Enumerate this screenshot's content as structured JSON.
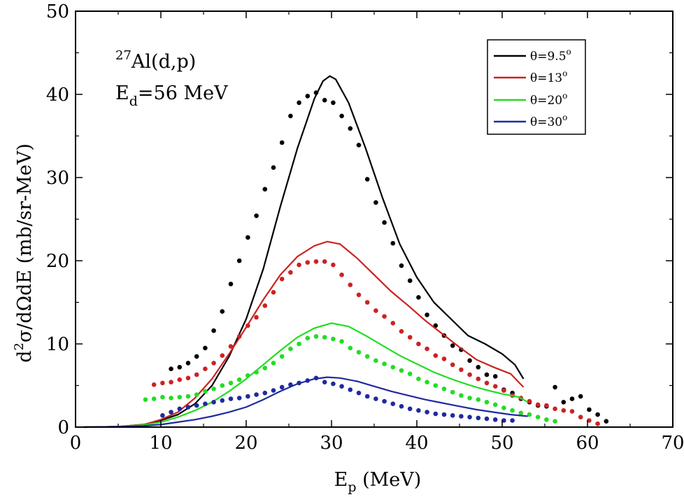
{
  "chart_data": {
    "type": "line",
    "title": "",
    "xlabel": {
      "main": "E",
      "sub": "p",
      "rest": " (MeV)"
    },
    "ylabel": {
      "d": "d",
      "sup": "2",
      "rest": "σ/dΩdE (mb/sr-MeV)"
    },
    "xlim": [
      0,
      70
    ],
    "ylim": [
      0,
      50
    ],
    "xticks": [
      0,
      10,
      20,
      30,
      40,
      50,
      60,
      70
    ],
    "yticks": [
      0,
      10,
      20,
      30,
      40,
      50
    ],
    "grid": false,
    "legend_position": "top-right",
    "annotation": {
      "reaction_sup": "27",
      "reaction": "Al(d,p)",
      "energy_main": "E",
      "energy_sub": "d",
      "energy_rest": "=56 MeV"
    },
    "series": [
      {
        "name": "θ=9.5°",
        "label_main": "θ=9.5",
        "label_sup": "o",
        "color": "#000000",
        "curve": [
          [
            1,
            0
          ],
          [
            5,
            0.05
          ],
          [
            8,
            0.3
          ],
          [
            10,
            0.8
          ],
          [
            12,
            1.5
          ],
          [
            14,
            2.8
          ],
          [
            16,
            5
          ],
          [
            18,
            8.5
          ],
          [
            20,
            13
          ],
          [
            22,
            19
          ],
          [
            24,
            26.5
          ],
          [
            26,
            33.5
          ],
          [
            28,
            39.5
          ],
          [
            29,
            41.6
          ],
          [
            29.8,
            42.2
          ],
          [
            30.5,
            41.8
          ],
          [
            32,
            39
          ],
          [
            34,
            33.5
          ],
          [
            36,
            27.5
          ],
          [
            38,
            22
          ],
          [
            40,
            18
          ],
          [
            42,
            15
          ],
          [
            44,
            13
          ],
          [
            46,
            11
          ],
          [
            48,
            10
          ],
          [
            50,
            8.8
          ],
          [
            51.5,
            7.5
          ],
          [
            52.5,
            5.8
          ]
        ],
        "points": [
          [
            11.2,
            7
          ],
          [
            12.2,
            7.2
          ],
          [
            13.2,
            7.7
          ],
          [
            14.2,
            8.5
          ],
          [
            15.2,
            9.5
          ],
          [
            16.2,
            11.6
          ],
          [
            17.2,
            13.9
          ],
          [
            18.2,
            17.2
          ],
          [
            19.2,
            20
          ],
          [
            20.2,
            22.8
          ],
          [
            21.2,
            25.4
          ],
          [
            22.2,
            28.6
          ],
          [
            23.2,
            31.2
          ],
          [
            24.2,
            34.2
          ],
          [
            25.2,
            37.4
          ],
          [
            26.2,
            39
          ],
          [
            27.2,
            39.8
          ],
          [
            28.2,
            40.2
          ],
          [
            29.2,
            39.3
          ],
          [
            30.2,
            39
          ],
          [
            31.2,
            37.4
          ],
          [
            32.2,
            35.9
          ],
          [
            33.2,
            33.9
          ],
          [
            34.2,
            29.8
          ],
          [
            35.2,
            27
          ],
          [
            36.2,
            24.6
          ],
          [
            37.2,
            22.1
          ],
          [
            38.2,
            19.4
          ],
          [
            39.2,
            17.6
          ],
          [
            40.2,
            15.6
          ],
          [
            41.2,
            13.5
          ],
          [
            42.2,
            12.2
          ],
          [
            43.2,
            11
          ],
          [
            44.2,
            9.8
          ],
          [
            45.2,
            9.3
          ],
          [
            46.2,
            8
          ],
          [
            47.2,
            7.2
          ],
          [
            48.2,
            6.3
          ],
          [
            49.2,
            6.1
          ],
          [
            50.2,
            4.5
          ],
          [
            51.2,
            4.1
          ],
          [
            52.2,
            3.4
          ],
          [
            53.2,
            3
          ],
          [
            54.2,
            2.6
          ],
          [
            55.2,
            2.5
          ],
          [
            56.2,
            4.8
          ],
          [
            57.2,
            3
          ],
          [
            58.2,
            3.4
          ],
          [
            59.2,
            3.7
          ],
          [
            60.2,
            2.1
          ],
          [
            61.2,
            1.5
          ],
          [
            62.2,
            0.7
          ]
        ]
      },
      {
        "name": "θ=13°",
        "label_main": "θ=13",
        "label_sup": "o",
        "color": "#cc2222",
        "curve": [
          [
            1,
            0
          ],
          [
            5,
            0.05
          ],
          [
            8,
            0.3
          ],
          [
            10,
            0.9
          ],
          [
            12,
            1.8
          ],
          [
            14,
            3.5
          ],
          [
            16,
            5.8
          ],
          [
            18,
            8.8
          ],
          [
            20,
            12
          ],
          [
            22,
            15.3
          ],
          [
            24,
            18.3
          ],
          [
            26,
            20.5
          ],
          [
            28,
            21.8
          ],
          [
            29.5,
            22.3
          ],
          [
            31,
            22
          ],
          [
            33,
            20.3
          ],
          [
            35,
            18.3
          ],
          [
            37,
            16.3
          ],
          [
            39,
            14.6
          ],
          [
            41,
            12.8
          ],
          [
            43,
            11.2
          ],
          [
            45,
            9.6
          ],
          [
            47,
            8.1
          ],
          [
            49,
            7.2
          ],
          [
            51,
            6.4
          ],
          [
            52.5,
            4.8
          ]
        ],
        "points": [
          [
            9.2,
            5.1
          ],
          [
            10.2,
            5.3
          ],
          [
            11.2,
            5.4
          ],
          [
            12.2,
            5.7
          ],
          [
            13.2,
            5.9
          ],
          [
            14.2,
            6.3
          ],
          [
            15.2,
            7
          ],
          [
            16.2,
            7.7
          ],
          [
            17.2,
            8.6
          ],
          [
            18.2,
            9.7
          ],
          [
            19.2,
            10.9
          ],
          [
            20.2,
            12.2
          ],
          [
            21.2,
            13.2
          ],
          [
            22.2,
            14.6
          ],
          [
            23.2,
            16.2
          ],
          [
            24.2,
            17.8
          ],
          [
            25.2,
            18.6
          ],
          [
            26.2,
            19.5
          ],
          [
            27.2,
            19.8
          ],
          [
            28.2,
            19.9
          ],
          [
            29.2,
            19.9
          ],
          [
            30.2,
            19.5
          ],
          [
            31.2,
            18.3
          ],
          [
            32.2,
            17.1
          ],
          [
            33.2,
            15.9
          ],
          [
            34.2,
            15
          ],
          [
            35.2,
            14
          ],
          [
            36.2,
            13.3
          ],
          [
            37.2,
            12.5
          ],
          [
            38.2,
            11.5
          ],
          [
            39.2,
            10.8
          ],
          [
            40.2,
            10
          ],
          [
            41.2,
            9.4
          ],
          [
            42.2,
            8.6
          ],
          [
            43.2,
            8.2
          ],
          [
            44.2,
            7.5
          ],
          [
            45.2,
            6.9
          ],
          [
            46.2,
            6.3
          ],
          [
            47.2,
            5.8
          ],
          [
            48.2,
            5.3
          ],
          [
            49.2,
            4.9
          ],
          [
            50.2,
            4.4
          ],
          [
            51.2,
            3.8
          ],
          [
            52.2,
            3.5
          ],
          [
            53.2,
            3.1
          ],
          [
            54.2,
            2.7
          ],
          [
            55.2,
            2.6
          ],
          [
            56.2,
            2.2
          ],
          [
            57.2,
            2
          ],
          [
            58.2,
            1.9
          ],
          [
            59.2,
            1.2
          ],
          [
            60.2,
            0.8
          ],
          [
            61.2,
            0.4
          ]
        ]
      },
      {
        "name": "θ=20°",
        "label_main": "θ=20",
        "label_sup": "o",
        "color": "#22dd22",
        "curve": [
          [
            1,
            0
          ],
          [
            5,
            0.05
          ],
          [
            8,
            0.25
          ],
          [
            10,
            0.6
          ],
          [
            12,
            1.2
          ],
          [
            14,
            2
          ],
          [
            16,
            3
          ],
          [
            18,
            4.3
          ],
          [
            20,
            5.8
          ],
          [
            22,
            7.5
          ],
          [
            24,
            9.2
          ],
          [
            26,
            10.8
          ],
          [
            28,
            11.9
          ],
          [
            30,
            12.5
          ],
          [
            32,
            12.1
          ],
          [
            34,
            11
          ],
          [
            36,
            9.8
          ],
          [
            38,
            8.6
          ],
          [
            40,
            7.6
          ],
          [
            42,
            6.6
          ],
          [
            44,
            5.8
          ],
          [
            46,
            5.1
          ],
          [
            48,
            4.5
          ],
          [
            50,
            4
          ],
          [
            52,
            3.6
          ],
          [
            53,
            3
          ]
        ],
        "points": [
          [
            8.2,
            3.3
          ],
          [
            9.2,
            3.4
          ],
          [
            10.2,
            3.6
          ],
          [
            11.2,
            3.5
          ],
          [
            12.2,
            3.6
          ],
          [
            13.2,
            3.7
          ],
          [
            14.2,
            3.9
          ],
          [
            15.2,
            4.3
          ],
          [
            16.2,
            4.6
          ],
          [
            17.2,
            5
          ],
          [
            18.2,
            5.3
          ],
          [
            19.2,
            5.7
          ],
          [
            20.2,
            6.2
          ],
          [
            21.2,
            6.6
          ],
          [
            22.2,
            7.1
          ],
          [
            23.2,
            7.7
          ],
          [
            24.2,
            8.5
          ],
          [
            25.2,
            9.4
          ],
          [
            26.2,
            10
          ],
          [
            27.2,
            10.7
          ],
          [
            28.2,
            10.9
          ],
          [
            29.2,
            10.8
          ],
          [
            30.2,
            10.6
          ],
          [
            31.2,
            10.3
          ],
          [
            32.2,
            9.5
          ],
          [
            33.2,
            9
          ],
          [
            34.2,
            8.5
          ],
          [
            35.2,
            8
          ],
          [
            36.2,
            7.6
          ],
          [
            37.2,
            7.2
          ],
          [
            38.2,
            6.8
          ],
          [
            39.2,
            6.4
          ],
          [
            40.2,
            5.8
          ],
          [
            41.2,
            5.4
          ],
          [
            42.2,
            5
          ],
          [
            43.2,
            4.6
          ],
          [
            44.2,
            4.2
          ],
          [
            45.2,
            3.8
          ],
          [
            46.2,
            3.5
          ],
          [
            47.2,
            3.3
          ],
          [
            48.2,
            3
          ],
          [
            49.2,
            2.7
          ],
          [
            50.2,
            2.3
          ],
          [
            51.2,
            2
          ],
          [
            52.2,
            1.7
          ],
          [
            53.2,
            1.5
          ],
          [
            54.2,
            1.2
          ],
          [
            55.2,
            0.9
          ],
          [
            56.2,
            0.7
          ]
        ]
      },
      {
        "name": "θ=30°",
        "label_main": "θ=30",
        "label_sup": "o",
        "color": "#1f2aa0",
        "curve": [
          [
            1,
            0
          ],
          [
            5,
            0.05
          ],
          [
            8,
            0.15
          ],
          [
            10,
            0.3
          ],
          [
            12,
            0.6
          ],
          [
            14,
            0.9
          ],
          [
            16,
            1.3
          ],
          [
            18,
            1.8
          ],
          [
            20,
            2.4
          ],
          [
            22,
            3.3
          ],
          [
            24,
            4.3
          ],
          [
            26,
            5.2
          ],
          [
            28,
            5.8
          ],
          [
            29.5,
            6
          ],
          [
            31,
            5.9
          ],
          [
            33,
            5.5
          ],
          [
            35,
            4.9
          ],
          [
            37,
            4.3
          ],
          [
            39,
            3.8
          ],
          [
            41,
            3.3
          ],
          [
            43,
            2.9
          ],
          [
            45,
            2.5
          ],
          [
            47,
            2.1
          ],
          [
            49,
            1.8
          ],
          [
            51,
            1.5
          ],
          [
            53,
            1.3
          ]
        ],
        "points": [
          [
            10.2,
            1.4
          ],
          [
            11.2,
            1.8
          ],
          [
            12.2,
            2.2
          ],
          [
            13.2,
            2.4
          ],
          [
            14.2,
            2.6
          ],
          [
            15.2,
            2.8
          ],
          [
            16.2,
            3
          ],
          [
            17.2,
            3.2
          ],
          [
            18.2,
            3.4
          ],
          [
            19.2,
            3.5
          ],
          [
            20.2,
            3.7
          ],
          [
            21.2,
            3.9
          ],
          [
            22.2,
            4.1
          ],
          [
            23.2,
            4.4
          ],
          [
            24.2,
            4.8
          ],
          [
            25.2,
            5.1
          ],
          [
            26.2,
            5.3
          ],
          [
            27.2,
            5.6
          ],
          [
            28.2,
            5.9
          ],
          [
            29.2,
            5.4
          ],
          [
            30.2,
            5.2
          ],
          [
            31.2,
            4.9
          ],
          [
            32.2,
            4.5
          ],
          [
            33.2,
            4.1
          ],
          [
            34.2,
            3.7
          ],
          [
            35.2,
            3.4
          ],
          [
            36.2,
            3.1
          ],
          [
            37.2,
            2.8
          ],
          [
            38.2,
            2.5
          ],
          [
            39.2,
            2.2
          ],
          [
            40.2,
            2
          ],
          [
            41.2,
            1.8
          ],
          [
            42.2,
            1.6
          ],
          [
            43.2,
            1.5
          ],
          [
            44.2,
            1.4
          ],
          [
            45.2,
            1.3
          ],
          [
            46.2,
            1.2
          ],
          [
            47.2,
            1.1
          ],
          [
            48.2,
            1
          ],
          [
            49.2,
            0.9
          ],
          [
            50.2,
            0.8
          ],
          [
            51.2,
            0.8
          ]
        ]
      }
    ]
  }
}
